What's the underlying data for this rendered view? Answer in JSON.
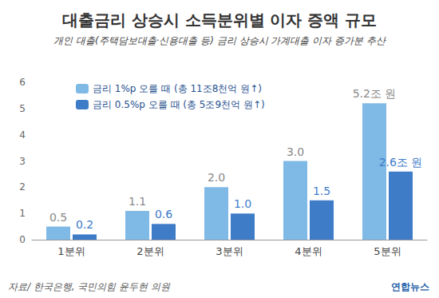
{
  "chart_data": {
    "type": "bar",
    "title": "대출금리 상승시 소득분위별 이자 증액 규모",
    "subtitle": "개인 대출(주택담보대출·신용대출 등) 금리 상승시 가계대출 이자 증가분 추산",
    "categories": [
      "1분위",
      "2분위",
      "3분위",
      "4분위",
      "5분위"
    ],
    "series": [
      {
        "name": "금리 1%p 오를 때 (총 11조8천억 원↑)",
        "color": "#7fb9e6",
        "values": [
          0.5,
          1.1,
          2.0,
          3.0,
          5.2
        ],
        "value_labels": [
          "0.5",
          "1.1",
          "2.0",
          "3.0",
          "5.2조 원"
        ]
      },
      {
        "name": "금리 0.5%p 오를 때 (총 5조9천억 원↑)",
        "color": "#3f7cc8",
        "values": [
          0.2,
          0.6,
          1.0,
          1.5,
          2.6
        ],
        "value_labels": [
          "0.2",
          "0.6",
          "1.0",
          "1.5",
          "2.6조 원"
        ]
      }
    ],
    "ylim": [
      0,
      6
    ],
    "yticks": [
      0,
      1,
      2,
      3,
      4,
      5,
      6
    ],
    "grid": false,
    "legend": "upper left",
    "data_labels": true,
    "annotations": [
      "자료/ 한국은행, 국민의힘 윤두현 의원",
      "연합뉴스"
    ]
  }
}
